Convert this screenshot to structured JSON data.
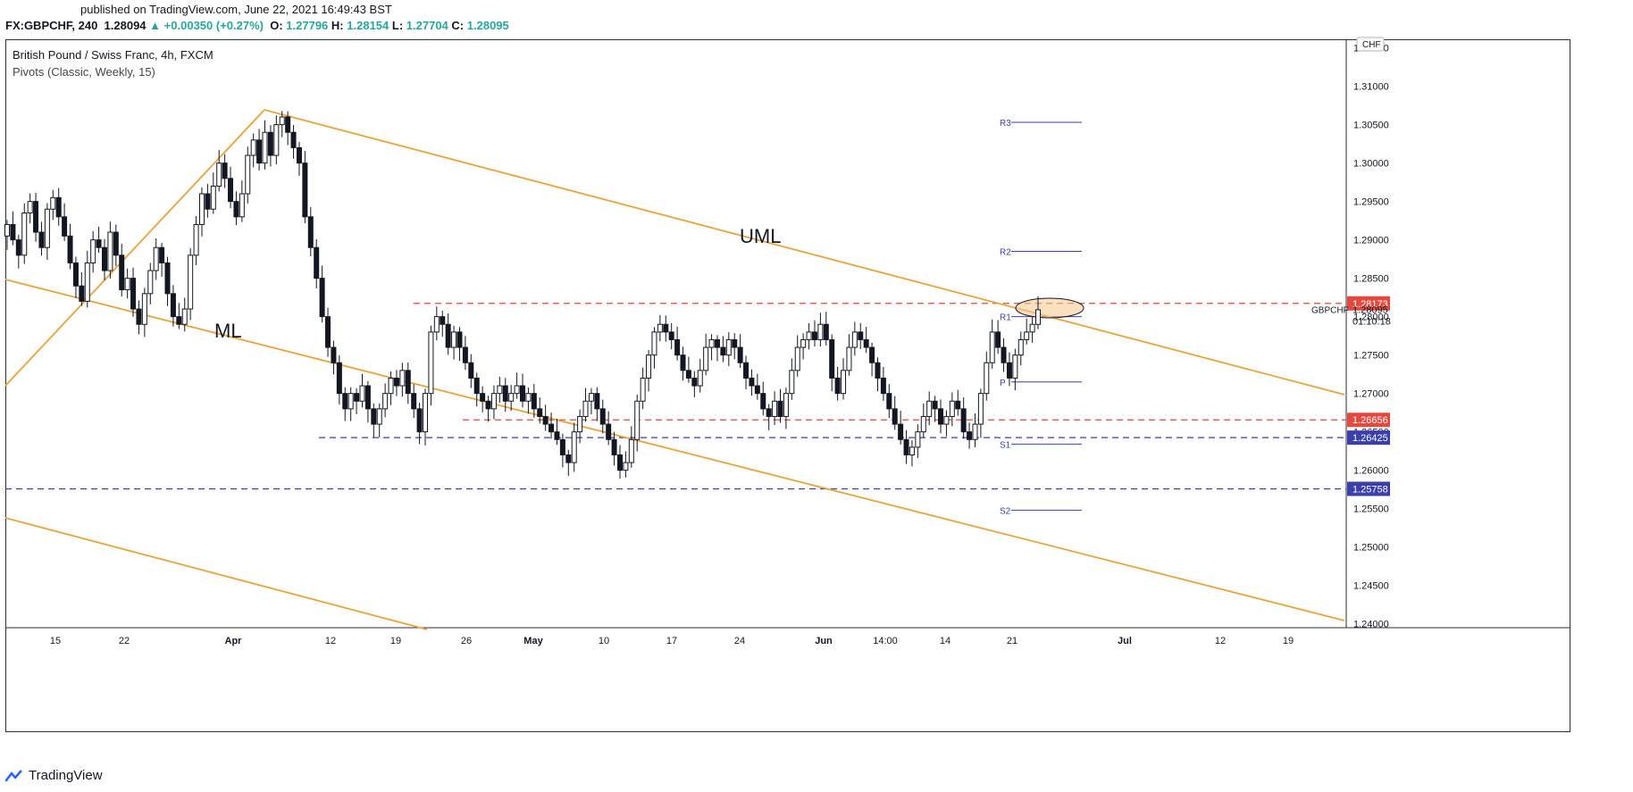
{
  "header": {
    "published": "published on TradingView.com, June 22, 2021 16:49:43 BST",
    "symbol": "FX:GBPCHF, 240",
    "last": "1.28094",
    "change_arrow": "▲",
    "change": "+0.00350 (+0.27%)",
    "o_label": "O:",
    "o_value": "1.27796",
    "h_label": "H:",
    "h_value": "1.28154",
    "l_label": "L:",
    "l_value": "1.27704",
    "c_label": "C:",
    "c_value": "1.28095"
  },
  "legend": {
    "title": "British Pound / Swiss Franc, 4h, FXCM",
    "indicator": "Pivots (Classic, Weekly, 15)"
  },
  "footer": {
    "brand": "TradingView",
    "logo_icon": "tradingview-logo-icon"
  },
  "colors": {
    "up": "#26a69a",
    "channel": "#e8a33d",
    "resistance": "#e04a3f",
    "support": "#3b3fa8",
    "candle": "#131722"
  },
  "chart_data": {
    "type": "candlestick",
    "currency_label": "CHF",
    "ylim": [
      1.2395,
      1.316
    ],
    "y_ticks": [
      "1.24000",
      "1.24500",
      "1.25000",
      "1.25500",
      "1.26000",
      "1.26500",
      "1.27000",
      "1.27500",
      "1.28000",
      "1.28500",
      "1.29000",
      "1.29500",
      "1.30000",
      "1.30500",
      "1.31000",
      "1.31500"
    ],
    "x_ticks": [
      "15",
      "22",
      "Apr",
      "12",
      "19",
      "26",
      "May",
      "10",
      "17",
      "24",
      "Jun",
      "14:00",
      "14",
      "21",
      "Jul",
      "12",
      "19"
    ],
    "price_labels": [
      {
        "value": "1.28173",
        "kind": "resistance"
      },
      {
        "value": "1.28095",
        "kind": "current",
        "symbol": "GBPCHF",
        "countdown": "01:10:18"
      },
      {
        "value": "1.26656",
        "kind": "resistance"
      },
      {
        "value": "1.26425",
        "kind": "support"
      },
      {
        "value": "1.25758",
        "kind": "support"
      }
    ],
    "horizontal_levels": [
      {
        "price": 1.28173,
        "style": "dashed",
        "color": "resistance"
      },
      {
        "price": 1.26656,
        "style": "dashed",
        "color": "resistance"
      },
      {
        "price": 1.26425,
        "style": "dashed",
        "color": "support"
      },
      {
        "price": 1.25758,
        "style": "dashed",
        "color": "support"
      }
    ],
    "pivots": [
      {
        "label": "R3",
        "price": 1.3053
      },
      {
        "label": "R2",
        "price": 1.2885
      },
      {
        "label": "R1",
        "price": 1.28
      },
      {
        "label": "P",
        "price": 1.2715
      },
      {
        "label": "S1",
        "price": 1.2634
      },
      {
        "label": "S2",
        "price": 1.2548
      }
    ],
    "annotations": [
      {
        "text": "UML"
      },
      {
        "text": "ML"
      }
    ],
    "closes": [
      1.292,
      1.29,
      1.288,
      1.2935,
      1.295,
      1.291,
      1.289,
      1.294,
      1.2955,
      1.293,
      1.2905,
      1.287,
      1.284,
      1.282,
      1.287,
      1.29,
      1.289,
      1.286,
      1.291,
      1.288,
      1.2835,
      1.285,
      1.281,
      1.279,
      1.283,
      1.286,
      1.289,
      1.287,
      1.283,
      1.28,
      1.279,
      1.281,
      1.288,
      1.292,
      1.296,
      1.294,
      1.297,
      1.3,
      1.298,
      1.295,
      1.293,
      1.296,
      1.301,
      1.303,
      1.3,
      1.304,
      1.301,
      1.305,
      1.306,
      1.304,
      1.302,
      1.3,
      1.293,
      1.289,
      1.285,
      1.28,
      1.276,
      1.274,
      1.27,
      1.268,
      1.27,
      1.269,
      1.271,
      1.268,
      1.266,
      1.268,
      1.27,
      1.272,
      1.271,
      1.273,
      1.27,
      1.268,
      1.265,
      1.27,
      1.278,
      1.28,
      1.279,
      1.276,
      1.278,
      1.276,
      1.274,
      1.272,
      1.27,
      1.269,
      1.268,
      1.27,
      1.271,
      1.269,
      1.27,
      1.271,
      1.269,
      1.27,
      1.268,
      1.267,
      1.266,
      1.265,
      1.264,
      1.262,
      1.261,
      1.265,
      1.267,
      1.269,
      1.27,
      1.268,
      1.266,
      1.264,
      1.262,
      1.26,
      1.261,
      1.264,
      1.269,
      1.272,
      1.275,
      1.278,
      1.279,
      1.278,
      1.277,
      1.275,
      1.273,
      1.272,
      1.271,
      1.273,
      1.276,
      1.277,
      1.276,
      1.275,
      1.277,
      1.276,
      1.274,
      1.272,
      1.271,
      1.27,
      1.268,
      1.267,
      1.269,
      1.267,
      1.27,
      1.273,
      1.276,
      1.277,
      1.278,
      1.277,
      1.279,
      1.277,
      1.272,
      1.27,
      1.273,
      1.276,
      1.278,
      1.277,
      1.276,
      1.274,
      1.272,
      1.27,
      1.268,
      1.266,
      1.264,
      1.262,
      1.263,
      1.265,
      1.267,
      1.269,
      1.268,
      1.266,
      1.267,
      1.269,
      1.268,
      1.265,
      1.264,
      1.266,
      1.27,
      1.274,
      1.278,
      1.276,
      1.274,
      1.272,
      1.275,
      1.277,
      1.278,
      1.279,
      1.2809
    ]
  }
}
